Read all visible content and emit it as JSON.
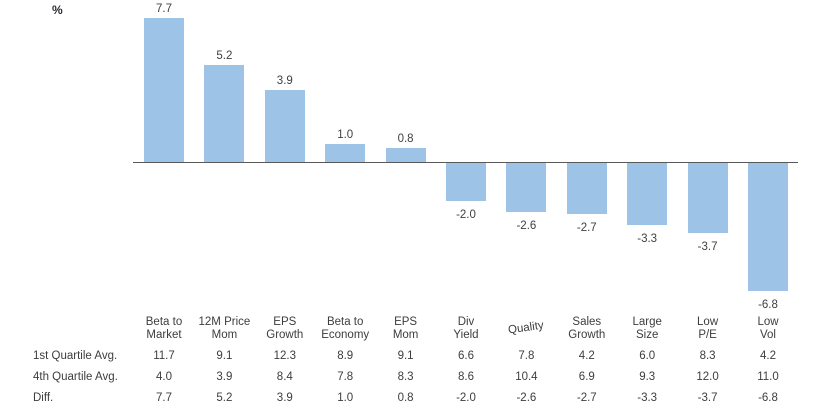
{
  "chart_data": {
    "type": "bar",
    "title": "",
    "unit_label": "%",
    "categories": [
      {
        "lines": [
          "Beta to",
          "Market"
        ]
      },
      {
        "lines": [
          "12M Price",
          "Mom"
        ]
      },
      {
        "lines": [
          "EPS",
          "Growth"
        ]
      },
      {
        "lines": [
          "Beta to",
          "Economy"
        ]
      },
      {
        "lines": [
          "EPS",
          "Mom"
        ]
      },
      {
        "lines": [
          "Div",
          "Yield"
        ]
      },
      {
        "lines": [
          "Quality"
        ],
        "tilt": -8
      },
      {
        "lines": [
          "Sales",
          "Growth"
        ]
      },
      {
        "lines": [
          "Large",
          "Size"
        ]
      },
      {
        "lines": [
          "Low",
          "P/E"
        ]
      },
      {
        "lines": [
          "Low",
          "Vol"
        ]
      }
    ],
    "values": [
      7.7,
      5.2,
      3.9,
      1.0,
      0.8,
      -2.0,
      -2.6,
      -2.7,
      -3.3,
      -3.7,
      -6.8
    ],
    "data_labels": [
      "7.7",
      "5.2",
      "3.9",
      "1.0",
      "0.8",
      "-2.0",
      "-2.6",
      "-2.7",
      "-3.3",
      "-3.7",
      "-6.8"
    ],
    "bar_color": "#9DC3E6",
    "axis_color": "#595959",
    "label_color": "#404040",
    "ylim": [
      -8,
      9
    ],
    "grid": false,
    "legend": "none"
  },
  "table": {
    "rows": [
      {
        "label": "1st Quartile Avg.",
        "values": [
          "11.7",
          "9.1",
          "12.3",
          "8.9",
          "9.1",
          "6.6",
          "7.8",
          "4.2",
          "6.0",
          "8.3",
          "4.2"
        ]
      },
      {
        "label": "4th Quartile Avg.",
        "values": [
          "4.0",
          "3.9",
          "8.4",
          "7.8",
          "8.3",
          "8.6",
          "10.4",
          "6.9",
          "9.3",
          "12.0",
          "11.0"
        ]
      },
      {
        "label": "Diff.",
        "values": [
          "7.7",
          "5.2",
          "3.9",
          "1.0",
          "0.8",
          "-2.0",
          "-2.6",
          "-2.7",
          "-3.3",
          "-3.7",
          "-6.8"
        ]
      }
    ]
  }
}
